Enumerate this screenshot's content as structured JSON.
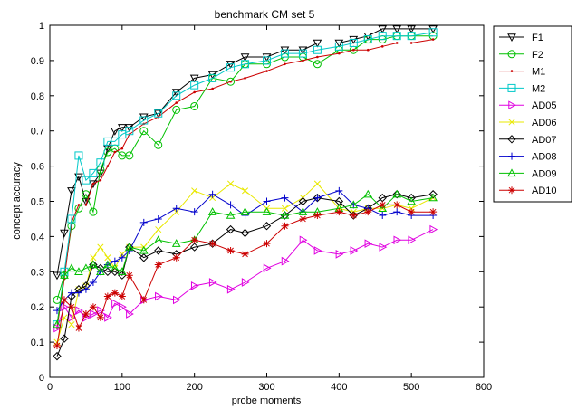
{
  "chart_data": {
    "type": "line",
    "title": "benchmark CM set 5",
    "xlabel": "probe moments",
    "ylabel": "concept accuracy",
    "xlim": [
      0,
      600
    ],
    "ylim": [
      0,
      1
    ],
    "xticks": [
      "0",
      "100",
      "200",
      "300",
      "400",
      "500",
      "600"
    ],
    "yticks": [
      "0",
      "0.1",
      "0.2",
      "0.3",
      "0.4",
      "0.5",
      "0.6",
      "0.7",
      "0.8",
      "0.9",
      "1"
    ],
    "grid": false,
    "legend_position": "outside-right",
    "series": [
      {
        "name": "F1",
        "color": "#000000",
        "marker": "triangle-down",
        "x": [
          10,
          20,
          30,
          40,
          50,
          60,
          70,
          80,
          90,
          100,
          110,
          130,
          150,
          175,
          200,
          225,
          250,
          270,
          300,
          325,
          350,
          370,
          400,
          420,
          440,
          460,
          480,
          500,
          530
        ],
        "y": [
          0.29,
          0.41,
          0.53,
          0.57,
          0.5,
          0.55,
          0.58,
          0.65,
          0.7,
          0.71,
          0.71,
          0.74,
          0.75,
          0.81,
          0.85,
          0.86,
          0.89,
          0.91,
          0.91,
          0.93,
          0.93,
          0.95,
          0.95,
          0.96,
          0.97,
          0.99,
          0.99,
          0.99,
          0.99
        ]
      },
      {
        "name": "F2",
        "color": "#00c000",
        "marker": "circle",
        "x": [
          10,
          20,
          30,
          40,
          50,
          60,
          70,
          80,
          90,
          100,
          110,
          130,
          150,
          175,
          200,
          225,
          250,
          270,
          300,
          325,
          350,
          370,
          400,
          420,
          440,
          460,
          480,
          500,
          530
        ],
        "y": [
          0.22,
          0.29,
          0.43,
          0.48,
          0.52,
          0.47,
          0.59,
          0.64,
          0.65,
          0.63,
          0.63,
          0.7,
          0.66,
          0.76,
          0.77,
          0.85,
          0.84,
          0.89,
          0.89,
          0.91,
          0.91,
          0.89,
          0.93,
          0.93,
          0.96,
          0.96,
          0.97,
          0.97,
          0.97
        ]
      },
      {
        "name": "M1",
        "color": "#cc0000",
        "marker": "dot",
        "x": [
          10,
          20,
          30,
          40,
          50,
          60,
          70,
          80,
          90,
          100,
          110,
          130,
          150,
          175,
          200,
          225,
          250,
          270,
          300,
          325,
          350,
          370,
          400,
          420,
          440,
          460,
          480,
          500,
          530
        ],
        "y": [
          0.14,
          0.28,
          0.44,
          0.49,
          0.49,
          0.55,
          0.56,
          0.6,
          0.64,
          0.65,
          0.69,
          0.72,
          0.74,
          0.78,
          0.81,
          0.82,
          0.84,
          0.85,
          0.87,
          0.89,
          0.9,
          0.91,
          0.92,
          0.93,
          0.93,
          0.94,
          0.95,
          0.95,
          0.96
        ]
      },
      {
        "name": "M2",
        "color": "#00c8c8",
        "marker": "square",
        "x": [
          10,
          20,
          30,
          40,
          50,
          60,
          70,
          80,
          90,
          100,
          110,
          130,
          150,
          175,
          200,
          225,
          250,
          270,
          300,
          325,
          350,
          370,
          400,
          420,
          440,
          460,
          480,
          500,
          530
        ],
        "y": [
          0.15,
          0.3,
          0.45,
          0.63,
          0.56,
          0.58,
          0.61,
          0.67,
          0.67,
          0.69,
          0.7,
          0.73,
          0.75,
          0.8,
          0.83,
          0.85,
          0.88,
          0.89,
          0.9,
          0.92,
          0.92,
          0.93,
          0.94,
          0.95,
          0.96,
          0.97,
          0.97,
          0.97,
          0.98
        ]
      },
      {
        "name": "AD05",
        "color": "#e000e0",
        "marker": "triangle-right",
        "x": [
          10,
          20,
          30,
          40,
          50,
          60,
          70,
          80,
          90,
          100,
          110,
          130,
          150,
          175,
          200,
          225,
          250,
          270,
          300,
          325,
          350,
          370,
          400,
          420,
          440,
          460,
          480,
          500,
          530
        ],
        "y": [
          0.14,
          0.2,
          0.17,
          0.19,
          0.17,
          0.18,
          0.19,
          0.17,
          0.21,
          0.2,
          0.18,
          0.22,
          0.23,
          0.22,
          0.26,
          0.27,
          0.25,
          0.27,
          0.31,
          0.33,
          0.39,
          0.36,
          0.35,
          0.36,
          0.38,
          0.37,
          0.39,
          0.39,
          0.42
        ]
      },
      {
        "name": "AD06",
        "color": "#e8e800",
        "marker": "x",
        "x": [
          10,
          20,
          30,
          40,
          50,
          60,
          70,
          80,
          90,
          100,
          110,
          130,
          150,
          175,
          200,
          225,
          250,
          270,
          300,
          325,
          350,
          370,
          400,
          420,
          440,
          460,
          480,
          500,
          530
        ],
        "y": [
          0.1,
          0.17,
          0.15,
          0.25,
          0.26,
          0.34,
          0.37,
          0.34,
          0.31,
          0.35,
          0.37,
          0.37,
          0.42,
          0.47,
          0.53,
          0.51,
          0.55,
          0.53,
          0.48,
          0.48,
          0.51,
          0.55,
          0.48,
          0.47,
          0.48,
          0.48,
          0.49,
          0.48,
          0.51
        ]
      },
      {
        "name": "AD07",
        "color": "#000000",
        "marker": "diamond",
        "x": [
          10,
          20,
          30,
          40,
          50,
          60,
          70,
          80,
          90,
          100,
          110,
          130,
          150,
          175,
          200,
          225,
          250,
          270,
          300,
          325,
          350,
          370,
          400,
          420,
          440,
          460,
          480,
          500,
          530
        ],
        "y": [
          0.06,
          0.11,
          0.23,
          0.25,
          0.26,
          0.32,
          0.31,
          0.3,
          0.3,
          0.29,
          0.37,
          0.34,
          0.36,
          0.35,
          0.37,
          0.38,
          0.42,
          0.41,
          0.43,
          0.46,
          0.5,
          0.51,
          0.5,
          0.46,
          0.48,
          0.51,
          0.52,
          0.51,
          0.52
        ]
      },
      {
        "name": "AD08",
        "color": "#0000cc",
        "marker": "plus",
        "x": [
          10,
          20,
          30,
          40,
          50,
          60,
          70,
          80,
          90,
          100,
          110,
          130,
          150,
          175,
          200,
          225,
          250,
          270,
          300,
          325,
          350,
          370,
          400,
          420,
          440,
          460,
          480,
          500,
          530
        ],
        "y": [
          0.19,
          0.22,
          0.24,
          0.24,
          0.25,
          0.27,
          0.3,
          0.32,
          0.33,
          0.34,
          0.36,
          0.44,
          0.45,
          0.48,
          0.47,
          0.52,
          0.49,
          0.46,
          0.5,
          0.51,
          0.47,
          0.51,
          0.53,
          0.49,
          0.48,
          0.46,
          0.47,
          0.46,
          0.46
        ]
      },
      {
        "name": "AD09",
        "color": "#00c000",
        "marker": "triangle-up",
        "x": [
          10,
          20,
          30,
          40,
          50,
          60,
          70,
          80,
          90,
          100,
          110,
          130,
          150,
          175,
          200,
          225,
          250,
          270,
          300,
          325,
          350,
          370,
          400,
          420,
          440,
          460,
          480,
          500,
          530
        ],
        "y": [
          0.15,
          0.29,
          0.31,
          0.3,
          0.31,
          0.32,
          0.3,
          0.32,
          0.31,
          0.3,
          0.37,
          0.36,
          0.39,
          0.38,
          0.39,
          0.47,
          0.46,
          0.47,
          0.47,
          0.46,
          0.47,
          0.47,
          0.48,
          0.49,
          0.52,
          0.48,
          0.52,
          0.5,
          0.51
        ]
      },
      {
        "name": "AD10",
        "color": "#cc0000",
        "marker": "asterisk",
        "x": [
          10,
          20,
          30,
          40,
          50,
          60,
          70,
          80,
          90,
          100,
          110,
          130,
          150,
          175,
          200,
          225,
          250,
          270,
          300,
          325,
          350,
          370,
          400,
          420,
          440,
          460,
          480,
          500,
          530
        ],
        "y": [
          0.09,
          0.22,
          0.2,
          0.14,
          0.18,
          0.2,
          0.17,
          0.23,
          0.24,
          0.23,
          0.29,
          0.22,
          0.32,
          0.34,
          0.39,
          0.38,
          0.36,
          0.35,
          0.38,
          0.43,
          0.45,
          0.46,
          0.47,
          0.46,
          0.47,
          0.49,
          0.49,
          0.47,
          0.47
        ]
      }
    ]
  }
}
